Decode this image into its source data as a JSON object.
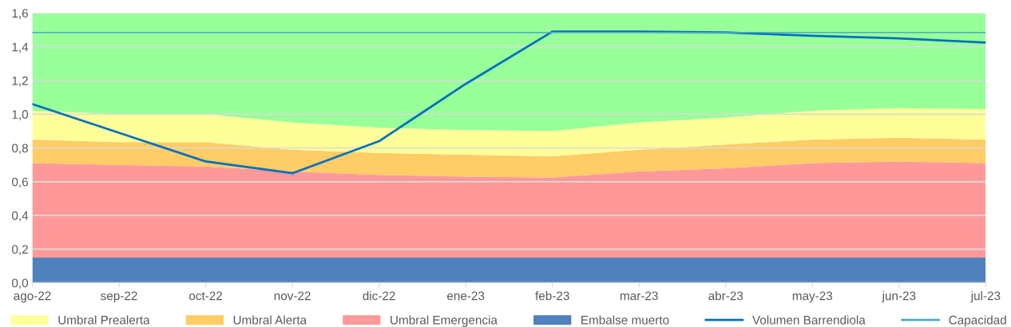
{
  "chart_data": {
    "type": "area",
    "stacked": true,
    "categories": [
      "ago-22",
      "sep-22",
      "oct-22",
      "nov-22",
      "dic-22",
      "ene-23",
      "feb-23",
      "mar-23",
      "abr-23",
      "may-23",
      "jun-23",
      "jul-23"
    ],
    "series": [
      {
        "name": "Embalse muerto",
        "color": "#4f81bd",
        "values": [
          0.15,
          0.15,
          0.15,
          0.15,
          0.15,
          0.15,
          0.15,
          0.15,
          0.15,
          0.15,
          0.15,
          0.15
        ]
      },
      {
        "name": "Umbral Emergencia",
        "color": "#ff9999",
        "values": [
          0.56,
          0.55,
          0.54,
          0.51,
          0.49,
          0.48,
          0.475,
          0.51,
          0.53,
          0.56,
          0.57,
          0.56
        ]
      },
      {
        "name": "Umbral Alerta",
        "color": "#ffcc66",
        "values": [
          0.14,
          0.135,
          0.145,
          0.13,
          0.13,
          0.13,
          0.125,
          0.13,
          0.14,
          0.14,
          0.14,
          0.14
        ]
      },
      {
        "name": "Umbral Prealerta",
        "color": "#ffff99",
        "values": [
          0.17,
          0.165,
          0.165,
          0.16,
          0.15,
          0.145,
          0.15,
          0.16,
          0.16,
          0.17,
          0.175,
          0.18
        ]
      },
      {
        "color": "#99ff99",
        "values": [
          0.58,
          0.6,
          0.6,
          0.65,
          0.68,
          0.695,
          0.7,
          0.65,
          0.62,
          0.58,
          0.565,
          0.57
        ]
      },
      {
        "name": "Volumen Barrendiola",
        "type": "line",
        "color": "#0070c0",
        "values": [
          1.06,
          0.89,
          0.72,
          0.65,
          0.84,
          1.18,
          1.49,
          1.49,
          1.485,
          1.465,
          1.45,
          1.425
        ]
      },
      {
        "name": "Capacidad",
        "type": "line",
        "color": "#4bacc6",
        "values": [
          1.485,
          1.485,
          1.485,
          1.485,
          1.485,
          1.485,
          1.485,
          1.485,
          1.485,
          1.485,
          1.485,
          1.485
        ]
      }
    ],
    "ylim": [
      0,
      1.6
    ],
    "yticks": [
      {
        "value": 0,
        "label": "0,0"
      },
      {
        "value": 0.2,
        "label": "0,2"
      },
      {
        "value": 0.4,
        "label": "0,4"
      },
      {
        "value": 0.6,
        "label": "0,6"
      },
      {
        "value": 0.8,
        "label": "0,8"
      },
      {
        "value": 1.0,
        "label": "1,0"
      },
      {
        "value": 1.2,
        "label": "1,2"
      },
      {
        "value": 1.4,
        "label": "1,4"
      },
      {
        "value": 1.6,
        "label": "1,6"
      }
    ],
    "grid": "y",
    "legend": "bottom",
    "marker": "none",
    "line_style": "solid"
  }
}
